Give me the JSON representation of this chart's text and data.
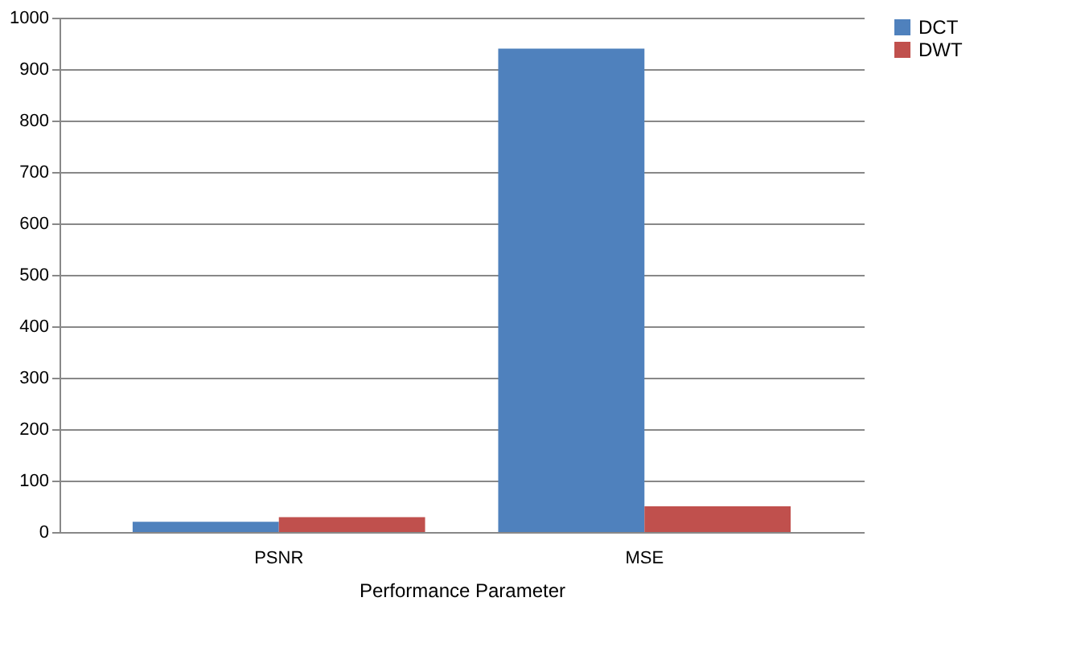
{
  "chart_data": {
    "type": "bar",
    "xlabel": "Performance Parameter",
    "categories": [
      "PSNR",
      "MSE"
    ],
    "series": [
      {
        "name": "DCT",
        "color": "#4f81bd",
        "values": [
          20,
          940
        ]
      },
      {
        "name": "DWT",
        "color": "#c0504d",
        "values": [
          29,
          50
        ]
      }
    ],
    "ylim": [
      0,
      1000
    ],
    "yticks": [
      0,
      100,
      200,
      300,
      400,
      500,
      600,
      700,
      800,
      900,
      1000
    ],
    "grid": "y",
    "legend": "right"
  }
}
